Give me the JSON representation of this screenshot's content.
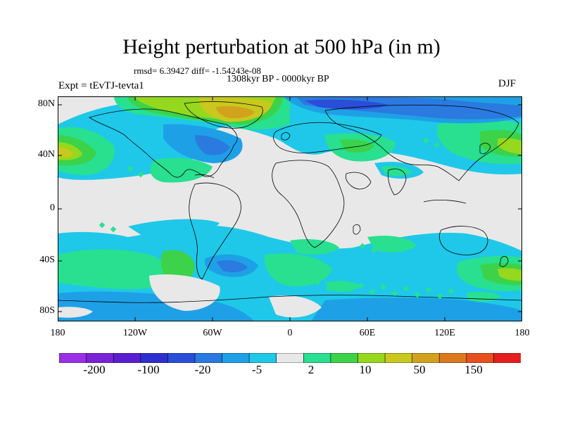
{
  "title": "Height perturbation at 500 hPa (in m)",
  "stats": "rmsd= 6.39427 diff= -1.54243e-08",
  "period": "1308kyr BP - 0000kyr BP",
  "expt": "Expt = tEvTJ-tevta1",
  "season": "DJF",
  "axes": {
    "lat_labels": [
      "80N",
      "40N",
      "0",
      "40S",
      "80S"
    ],
    "lon_labels": [
      "180",
      "120W",
      "60W",
      "0",
      "60E",
      "120E",
      "180"
    ]
  },
  "colorbar": {
    "colors": [
      "#9a2fe8",
      "#7a22d8",
      "#5a1ed0",
      "#2f2fd0",
      "#2a4ed8",
      "#2a7ae0",
      "#1ea0e6",
      "#1fc8e8",
      "#e8e8e8",
      "#28e090",
      "#3cd24a",
      "#96d81e",
      "#c8c81e",
      "#d2a21e",
      "#dc781e",
      "#e6501e",
      "#e61e1e"
    ],
    "labels": [
      "-200",
      "-100",
      "-20",
      "-5",
      "2",
      "10",
      "50",
      "150"
    ]
  }
}
